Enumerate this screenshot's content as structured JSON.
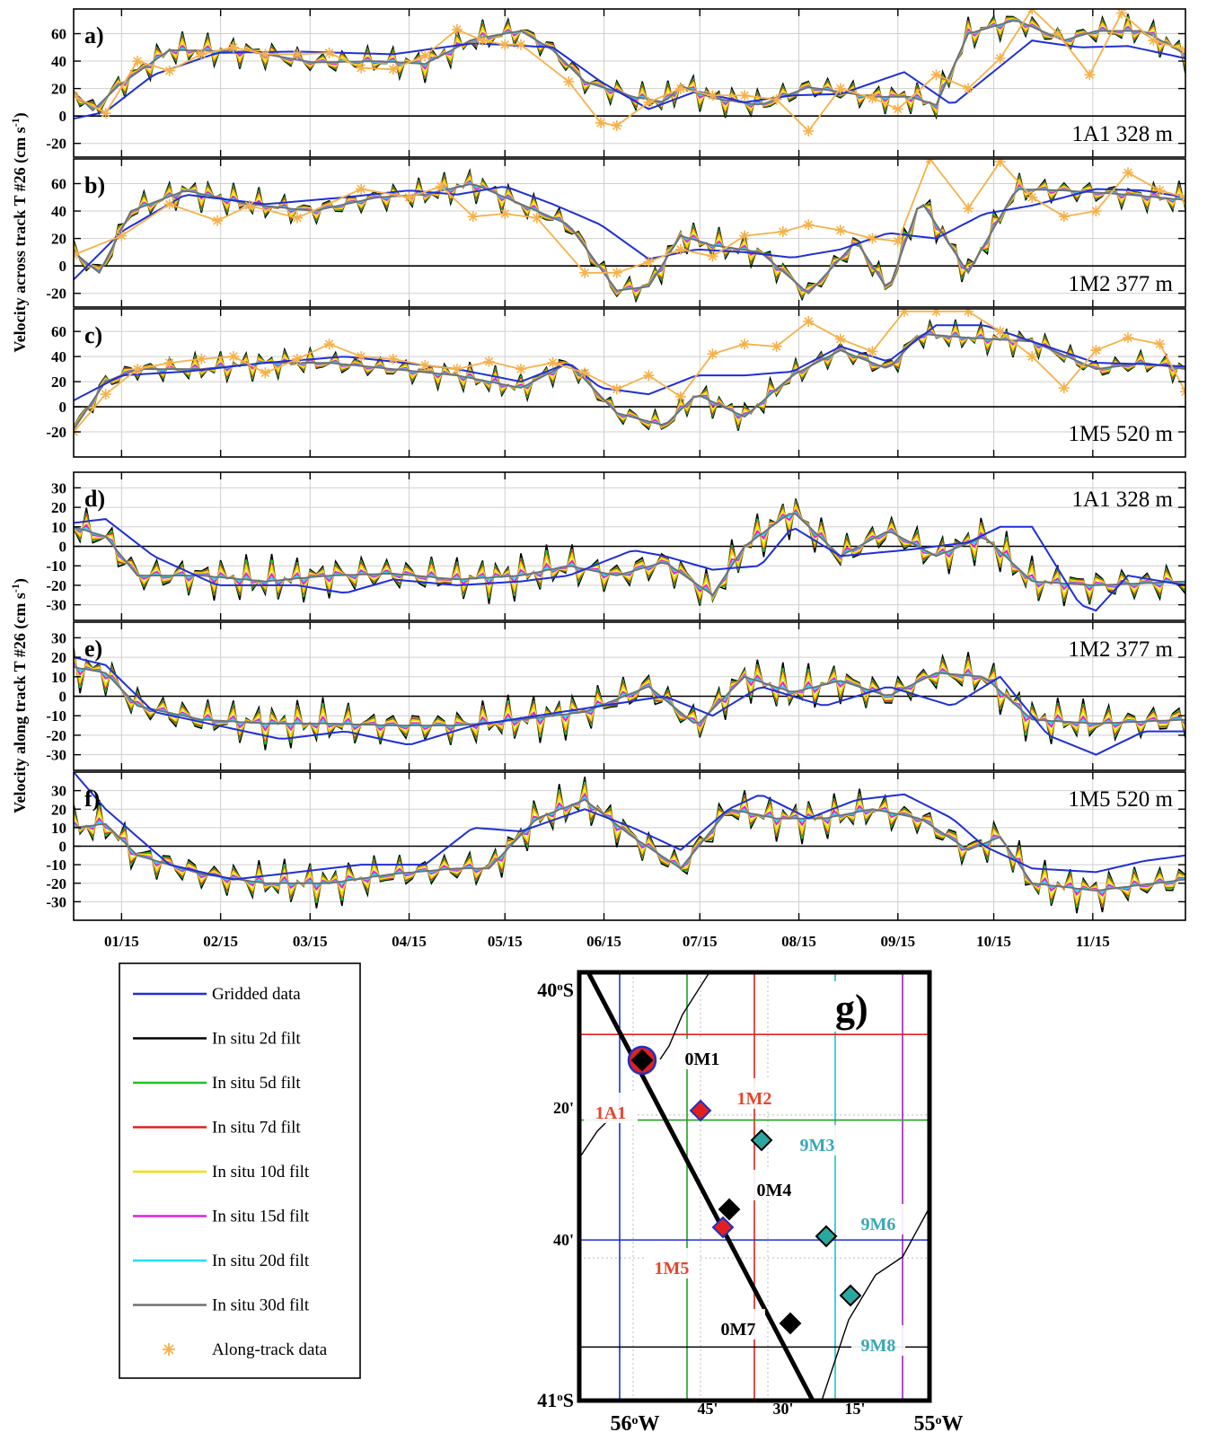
{
  "chart_data": [
    {
      "type": "line",
      "panel_label": "a)",
      "station_label": "1A1 328 m",
      "ylim": [
        -30,
        78
      ],
      "yticks": [
        -20,
        0,
        20,
        40,
        60
      ],
      "ylabel_group": "Velocity across track T #26 (cm s-1)",
      "x_tick_labels": [
        "01/15",
        "02/15",
        "03/15",
        "04/15",
        "05/15",
        "06/15",
        "07/15",
        "08/15",
        "09/15",
        "10/15",
        "11/15"
      ],
      "x_day_range": [
        0,
        348
      ],
      "gridded": {
        "name": "Gridded data",
        "x": [
          0,
          10,
          25,
          45,
          70,
          100,
          125,
          150,
          165,
          180,
          195,
          210,
          225,
          240,
          260,
          275,
          300,
          315,
          330,
          348
        ],
        "y": [
          -2,
          3,
          30,
          46,
          47,
          45,
          53,
          50,
          25,
          5,
          18,
          10,
          15,
          16,
          32,
          8,
          55,
          50,
          51,
          42
        ]
      },
      "insitu_base": {
        "x": [
          0,
          6,
          14,
          30,
          55,
          75,
          95,
          110,
          125,
          140,
          150,
          160,
          175,
          185,
          190,
          200,
          215,
          230,
          250,
          262,
          270,
          280,
          295,
          310,
          320,
          335,
          348
        ],
        "y": [
          18,
          4,
          22,
          48,
          47,
          39,
          40,
          38,
          56,
          62,
          48,
          25,
          14,
          10,
          22,
          13,
          8,
          21,
          14,
          14,
          8,
          60,
          70,
          55,
          62,
          62,
          45
        ]
      },
      "along_track": {
        "name": "Along-track data",
        "x": [
          0,
          10,
          20,
          30,
          40,
          50,
          60,
          70,
          80,
          90,
          100,
          110,
          120,
          128,
          135,
          140,
          155,
          165,
          170,
          180,
          190,
          200,
          210,
          220,
          230,
          240,
          250,
          258,
          270,
          280,
          290,
          300,
          308,
          318,
          328,
          338,
          348
        ],
        "y": [
          15,
          2,
          40,
          33,
          45,
          50,
          45,
          45,
          46,
          35,
          34,
          44,
          63,
          55,
          52,
          52,
          25,
          -5,
          -7,
          10,
          20,
          15,
          15,
          12,
          -11,
          20,
          13,
          5,
          30,
          20,
          42,
          78,
          60,
          30,
          75,
          55,
          48
        ]
      }
    },
    {
      "type": "line",
      "panel_label": "b)",
      "station_label": "1M2 377 m",
      "ylim": [
        -30,
        78
      ],
      "yticks": [
        -20,
        0,
        20,
        40,
        60
      ],
      "gridded": {
        "name": "Gridded data",
        "x": [
          0,
          15,
          35,
          60,
          85,
          105,
          120,
          135,
          150,
          165,
          180,
          195,
          210,
          225,
          240,
          255,
          270,
          285,
          300,
          320,
          335,
          348
        ],
        "y": [
          -10,
          25,
          52,
          45,
          50,
          55,
          52,
          58,
          45,
          30,
          5,
          12,
          10,
          6,
          12,
          24,
          20,
          38,
          44,
          56,
          55,
          50
        ]
      },
      "insitu_base": {
        "x": [
          0,
          8,
          18,
          35,
          55,
          75,
          95,
          110,
          125,
          140,
          155,
          170,
          180,
          190,
          200,
          215,
          230,
          245,
          255,
          265,
          280,
          295,
          310,
          330,
          348
        ],
        "y": [
          10,
          -5,
          40,
          55,
          45,
          40,
          50,
          52,
          60,
          45,
          30,
          -18,
          -15,
          22,
          15,
          10,
          -20,
          18,
          -18,
          48,
          -5,
          56,
          55,
          52,
          48
        ]
      },
      "along_track": {
        "name": "Along-track data",
        "x": [
          0,
          15,
          30,
          45,
          55,
          70,
          90,
          105,
          115,
          125,
          135,
          145,
          160,
          170,
          180,
          190,
          200,
          210,
          222,
          230,
          240,
          250,
          258,
          268,
          280,
          290,
          300,
          310,
          320,
          330,
          340,
          348
        ],
        "y": [
          8,
          22,
          45,
          33,
          44,
          35,
          56,
          50,
          58,
          36,
          38,
          35,
          -5,
          -5,
          3,
          12,
          7,
          22,
          25,
          30,
          26,
          20,
          18,
          78,
          42,
          76,
          50,
          36,
          40,
          68,
          55,
          50
        ]
      }
    },
    {
      "type": "line",
      "panel_label": "c)",
      "station_label": "1M5 520 m",
      "ylim": [
        -40,
        78
      ],
      "yticks": [
        -20,
        0,
        20,
        40,
        60
      ],
      "gridded": {
        "name": "Gridded data",
        "x": [
          0,
          15,
          35,
          60,
          85,
          100,
          120,
          140,
          155,
          165,
          180,
          195,
          210,
          225,
          240,
          255,
          270,
          285,
          300,
          320,
          335,
          348
        ],
        "y": [
          5,
          25,
          28,
          35,
          40,
          36,
          30,
          20,
          35,
          15,
          10,
          25,
          25,
          28,
          48,
          36,
          65,
          65,
          52,
          35,
          34,
          32
        ]
      },
      "insitu_base": {
        "x": [
          0,
          10,
          20,
          40,
          60,
          80,
          100,
          120,
          140,
          155,
          170,
          185,
          195,
          210,
          225,
          240,
          255,
          265,
          280,
          300,
          320,
          335,
          348
        ],
        "y": [
          -18,
          20,
          30,
          30,
          35,
          35,
          30,
          25,
          15,
          35,
          -5,
          -15,
          10,
          -8,
          25,
          45,
          30,
          58,
          55,
          52,
          30,
          35,
          30
        ]
      },
      "along_track": {
        "name": "Along-track data",
        "x": [
          0,
          10,
          20,
          30,
          40,
          50,
          60,
          70,
          80,
          90,
          100,
          110,
          120,
          130,
          140,
          150,
          160,
          170,
          180,
          190,
          200,
          210,
          220,
          230,
          240,
          250,
          260,
          270,
          280,
          290,
          300,
          310,
          320,
          330,
          340,
          348
        ],
        "y": [
          -20,
          10,
          30,
          35,
          38,
          40,
          27,
          38,
          50,
          40,
          38,
          33,
          30,
          36,
          30,
          35,
          27,
          14,
          25,
          8,
          42,
          50,
          48,
          68,
          54,
          44,
          76,
          76,
          76,
          60,
          40,
          15,
          45,
          55,
          50,
          12
        ]
      }
    },
    {
      "type": "line",
      "panel_label": "d)",
      "station_label": "1A1 328 m",
      "ylim": [
        -38,
        38
      ],
      "yticks": [
        -30,
        -20,
        -10,
        0,
        10,
        20,
        30
      ],
      "ylabel_group": "Velocity along track T #26 (cm s-1)",
      "gridded": {
        "name": "Gridded data",
        "x": [
          0,
          10,
          25,
          45,
          70,
          85,
          100,
          120,
          140,
          155,
          175,
          185,
          200,
          215,
          225,
          240,
          260,
          280,
          290,
          300,
          315,
          320,
          330,
          348
        ],
        "y": [
          12,
          14,
          -5,
          -20,
          -20,
          -24,
          -17,
          -20,
          -18,
          -15,
          -2,
          -5,
          -12,
          -10,
          10,
          -5,
          -2,
          2,
          10,
          10,
          -30,
          -33,
          -15,
          -20
        ]
      },
      "insitu_base": {
        "x": [
          0,
          10,
          20,
          40,
          60,
          80,
          100,
          120,
          140,
          155,
          170,
          185,
          200,
          210,
          225,
          240,
          255,
          270,
          285,
          300,
          320,
          348
        ],
        "y": [
          10,
          5,
          -15,
          -15,
          -18,
          -15,
          -14,
          -17,
          -15,
          -10,
          -15,
          -8,
          -25,
          0,
          18,
          -5,
          8,
          -5,
          5,
          -18,
          -20,
          -18
        ]
      }
    },
    {
      "type": "line",
      "panel_label": "e)",
      "station_label": "1M2 377 m",
      "ylim": [
        -38,
        38
      ],
      "yticks": [
        -30,
        -20,
        -10,
        0,
        10,
        20,
        30
      ],
      "gridded": {
        "name": "Gridded data",
        "x": [
          0,
          10,
          25,
          45,
          65,
          85,
          105,
          125,
          145,
          165,
          185,
          200,
          215,
          235,
          255,
          275,
          290,
          305,
          320,
          335,
          348
        ],
        "y": [
          20,
          16,
          -8,
          -15,
          -22,
          -18,
          -25,
          -15,
          -10,
          -5,
          0,
          -10,
          5,
          -5,
          5,
          -5,
          10,
          -20,
          -30,
          -18,
          -18
        ]
      },
      "insitu_base": {
        "x": [
          0,
          10,
          20,
          40,
          60,
          80,
          100,
          120,
          140,
          160,
          180,
          195,
          210,
          225,
          240,
          255,
          270,
          285,
          300,
          320,
          348
        ],
        "y": [
          15,
          12,
          -5,
          -12,
          -14,
          -14,
          -15,
          -15,
          -12,
          -8,
          5,
          -15,
          10,
          2,
          8,
          0,
          12,
          10,
          -12,
          -14,
          -12
        ]
      }
    },
    {
      "type": "line",
      "panel_label": "f)",
      "station_label": "1M5 520 m",
      "ylim": [
        -40,
        40
      ],
      "yticks": [
        -30,
        -20,
        -10,
        0,
        10,
        20,
        30
      ],
      "gridded": {
        "name": "Gridded data",
        "x": [
          0,
          10,
          30,
          50,
          70,
          90,
          110,
          125,
          140,
          160,
          175,
          190,
          205,
          215,
          230,
          245,
          260,
          275,
          285,
          300,
          320,
          335,
          348
        ],
        "y": [
          40,
          20,
          -10,
          -18,
          -14,
          -10,
          -10,
          10,
          8,
          20,
          10,
          -2,
          20,
          28,
          15,
          25,
          28,
          15,
          0,
          -12,
          -14,
          -8,
          -5
        ]
      },
      "insitu_base": {
        "x": [
          0,
          10,
          20,
          40,
          60,
          80,
          100,
          120,
          130,
          145,
          160,
          175,
          190,
          205,
          220,
          235,
          250,
          265,
          280,
          290,
          300,
          320,
          348
        ],
        "y": [
          10,
          12,
          -5,
          -15,
          -20,
          -20,
          -15,
          -12,
          -12,
          15,
          25,
          5,
          -12,
          20,
          15,
          15,
          20,
          15,
          -2,
          5,
          -20,
          -24,
          -18
        ]
      }
    },
    {
      "type": "map",
      "panel_label": "g)",
      "lat_labels": [
        "40°S",
        "20'",
        "40'",
        "41°S"
      ],
      "lon_labels": [
        "56°W",
        "45'",
        "30'",
        "15'",
        "55°W"
      ],
      "stations": [
        {
          "name": "0M1",
          "color": "#000000"
        },
        {
          "name": "1A1",
          "color": "#e8432a"
        },
        {
          "name": "1M2",
          "color": "#e8432a"
        },
        {
          "name": "9M3",
          "color": "#3aa7b8"
        },
        {
          "name": "0M4",
          "color": "#000000"
        },
        {
          "name": "1M5",
          "color": "#e8432a"
        },
        {
          "name": "9M6",
          "color": "#3aa7b8"
        },
        {
          "name": "0M7",
          "color": "#000000"
        },
        {
          "name": "9M8",
          "color": "#3aa7b8"
        }
      ]
    }
  ],
  "legend": [
    {
      "label": "Gridded data",
      "color": "#1f2fd6",
      "kind": "line"
    },
    {
      "label": "In situ 2d filt",
      "color": "#000000",
      "kind": "line"
    },
    {
      "label": "In situ 5d filt",
      "color": "#22c222",
      "kind": "line"
    },
    {
      "label": "In situ 7d filt",
      "color": "#e02020",
      "kind": "line"
    },
    {
      "label": "In situ 10d filt",
      "color": "#f0e000",
      "kind": "line"
    },
    {
      "label": "In situ 15d filt",
      "color": "#e020e0",
      "kind": "line"
    },
    {
      "label": "In situ 20d filt",
      "color": "#20e0f0",
      "kind": "line"
    },
    {
      "label": "In situ 30d filt",
      "color": "#707070",
      "kind": "line"
    },
    {
      "label": "Along-track data",
      "color": "#f5b14a",
      "kind": "star"
    }
  ]
}
